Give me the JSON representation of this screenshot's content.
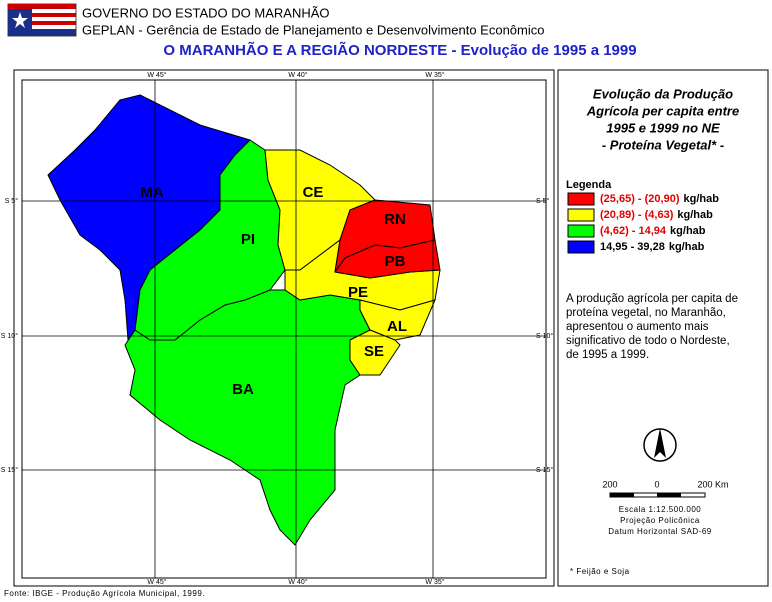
{
  "header": {
    "line1": "GOVERNO DO ESTADO DO MARANHÃO",
    "line2": "GEPLAN - Gerência de Estado de Planejamento e Desenvolvimento Econômico",
    "title": "O MARANHÃO E A REGIÃO NORDESTE - Evolução de 1995 a 1999"
  },
  "map": {
    "longitudes": [
      "W 45°",
      "W 40°",
      "W 35°"
    ],
    "latitudes": [
      "S 5°",
      "S 10°",
      "S 15°"
    ],
    "states": [
      "MA",
      "CE",
      "PI",
      "RN",
      "PB",
      "PE",
      "AL",
      "SE",
      "BA"
    ]
  },
  "panel": {
    "title_lines": [
      "Evolução da Produção",
      "Agrícola per capita entre",
      "1995 e 1999 no NE",
      "- Proteína Vegetal* -"
    ],
    "legend_title": "Legenda",
    "legend": [
      {
        "range": "(25,65) - (20,90)",
        "unit": "kg/hab"
      },
      {
        "range": "(20,89) - (4,63)",
        "unit": "kg/hab"
      },
      {
        "range": "(4,62) - 14,94",
        "unit": "kg/hab"
      },
      {
        "range": "14,95 - 39,28",
        "unit": "kg/hab"
      }
    ],
    "note_lines": [
      "A produção agrícola per capita de",
      "proteína vegetal, no Maranhão,",
      "apresentou o aumento mais",
      "significativo de todo o Nordeste,",
      "de 1995 a 1999."
    ],
    "scale_labels": [
      "200",
      "0",
      "200 Km"
    ],
    "scale_text": [
      "Escala 1:12.500.000",
      "Projeção Policônica",
      "Datum Horizontal SAD-69"
    ],
    "footnote": "* Feijão e Soja"
  },
  "footer": "Fonte: IBGE - Produção Agrícola Municipal, 1999."
}
